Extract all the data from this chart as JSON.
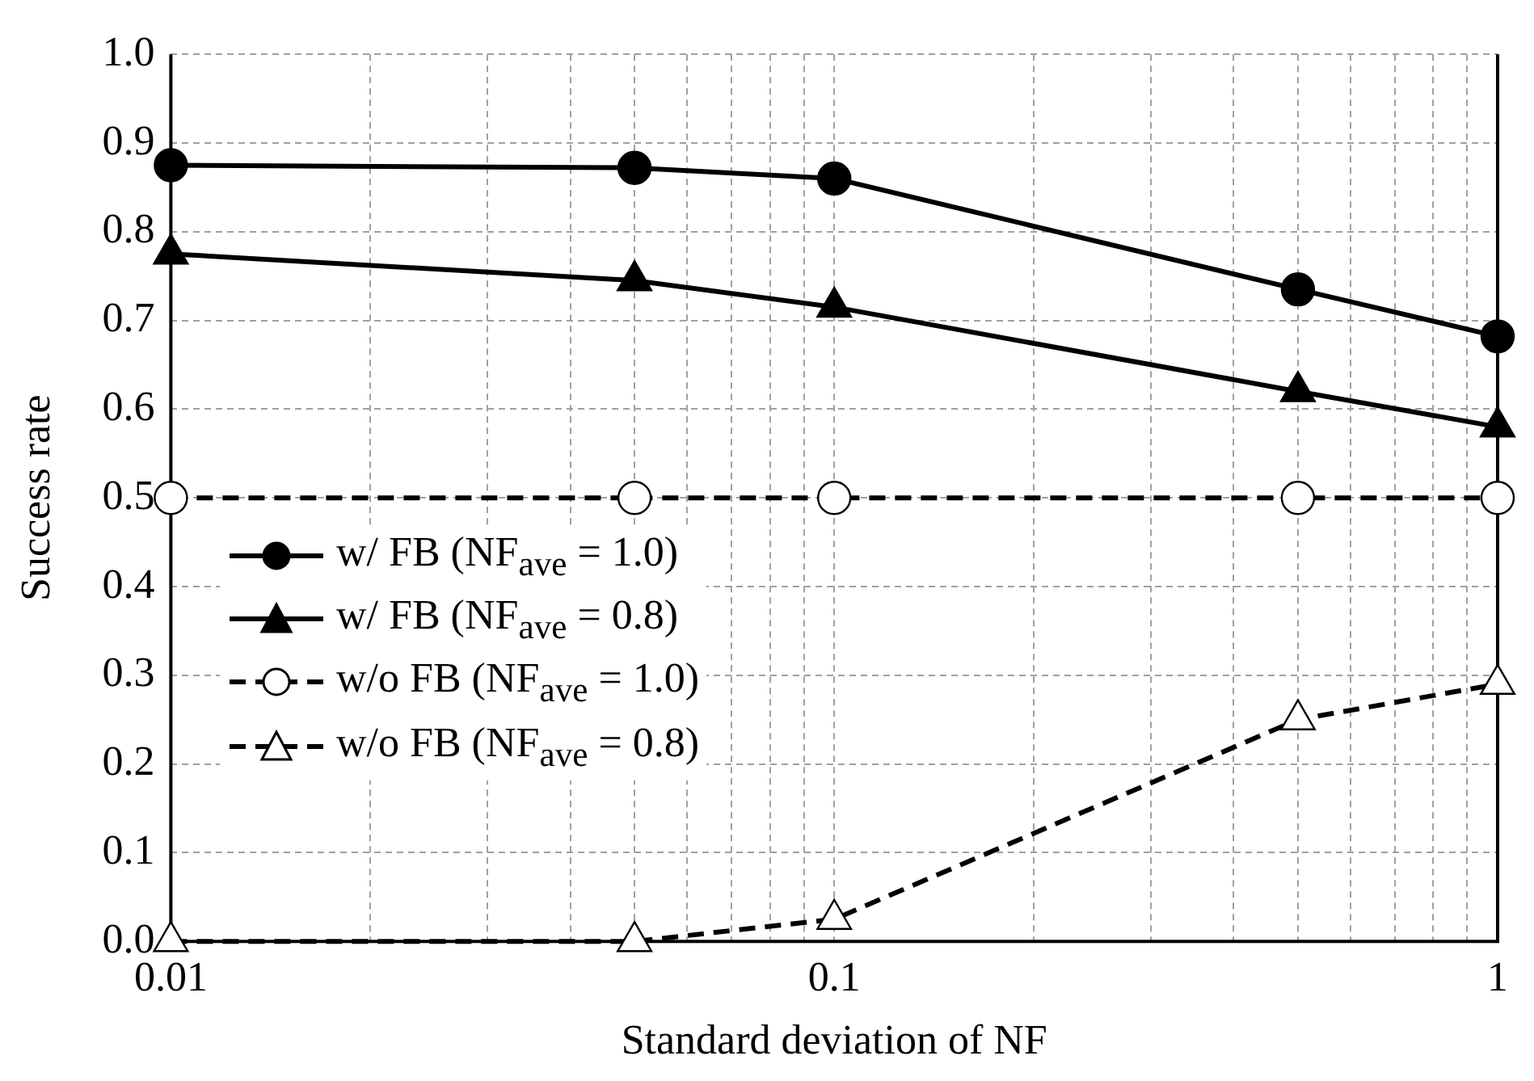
{
  "chart_data": {
    "type": "line",
    "xlabel": "Standard deviation of NF",
    "ylabel": "Success rate",
    "log": "x",
    "grid": true,
    "legend": "left",
    "x": [
      0.01,
      0.05,
      0.1,
      0.5,
      1
    ],
    "xlim": [
      0.01,
      1
    ],
    "xticks": [
      0.01,
      {
        "value": 0.02,
        "label": null
      },
      {
        "value": 0.03,
        "label": null
      },
      {
        "value": 0.04,
        "label": null
      },
      {
        "value": 0.05,
        "label": null
      },
      {
        "value": 0.06,
        "label": null
      },
      {
        "value": 0.07,
        "label": null
      },
      {
        "value": 0.08,
        "label": null
      },
      {
        "value": 0.09,
        "label": null
      },
      0.1,
      {
        "value": 0.2,
        "label": null
      },
      {
        "value": 0.3,
        "label": null
      },
      {
        "value": 0.4,
        "label": null
      },
      {
        "value": 0.5,
        "label": null
      },
      {
        "value": 0.6,
        "label": null
      },
      {
        "value": 0.7,
        "label": null
      },
      {
        "value": 0.8,
        "label": null
      },
      {
        "value": 0.9,
        "label": null
      },
      1
    ],
    "ylim": [
      0,
      1
    ],
    "yticks": [
      {
        "value": 0,
        "label": "0.0"
      },
      0.1,
      0.2,
      0.3,
      0.4,
      0.5,
      0.6,
      0.7,
      0.8,
      0.9,
      {
        "value": 1,
        "label": "1.0"
      }
    ],
    "series": [
      {
        "name": "w/ FB (NF$_{ave}$ = 1.0)",
        "color": "#000000",
        "marker": "circle",
        "line_style": "solid",
        "values": [
          0.875,
          0.872,
          0.86,
          0.735,
          0.682
        ]
      },
      {
        "name": "w/ FB (NF$_{ave}$ = 0.8)",
        "color": "#000000",
        "marker": "triangle",
        "line_style": "solid",
        "values": [
          0.775,
          0.745,
          0.715,
          0.62,
          0.58
        ]
      },
      {
        "name": "w/o FB (NF$_{ave}$ = 1.0)",
        "color": "#000000",
        "marker": "circle",
        "line_style": "dashed",
        "values": [
          0.5,
          0.5,
          0.5,
          0.5,
          0.5
        ]
      },
      {
        "name": "w/o FB (NF$_{ave}$ = 0.8)",
        "color": "#000000",
        "marker": "triangle",
        "line_style": "dashed",
        "values": [
          0,
          0,
          0.025,
          0.25,
          0.29
        ]
      }
    ]
  }
}
